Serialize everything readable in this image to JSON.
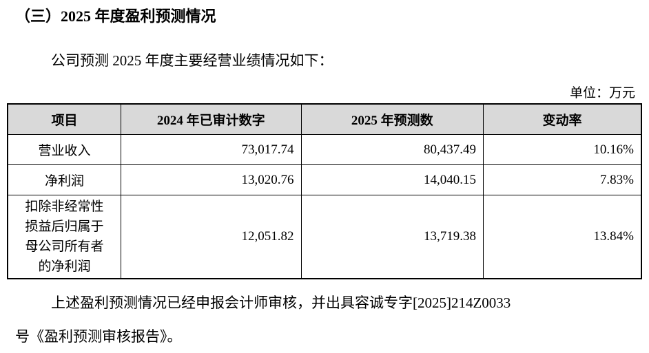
{
  "heading": "（三）2025 年度盈利预测情况",
  "intro": "公司预测 2025 年度主要经营业绩情况如下：",
  "unit": "单位：万元",
  "table": {
    "headers": [
      "项目",
      "2024 年已审计数字",
      "2025 年预测数",
      "变动率"
    ],
    "rows": [
      {
        "label_lines": [
          "营业收入"
        ],
        "v2024": "73,017.74",
        "v2025": "80,437.49",
        "rate": "10.16%"
      },
      {
        "label_lines": [
          "净利润"
        ],
        "v2024": "13,020.76",
        "v2025": "14,040.15",
        "rate": "7.83%"
      },
      {
        "label_lines": [
          "扣除非经常性",
          "损益后归属于",
          "母公司所有者",
          "的净利润"
        ],
        "v2024": "12,051.82",
        "v2025": "13,719.38",
        "rate": "13.84%"
      }
    ]
  },
  "footer": {
    "line1": "上述盈利预测情况已经申报会计师审核，并出具容诚专字[2025]214Z0033",
    "line2": "号《盈利预测审核报告》。"
  },
  "colors": {
    "header_bg": "#d9d9d9"
  }
}
